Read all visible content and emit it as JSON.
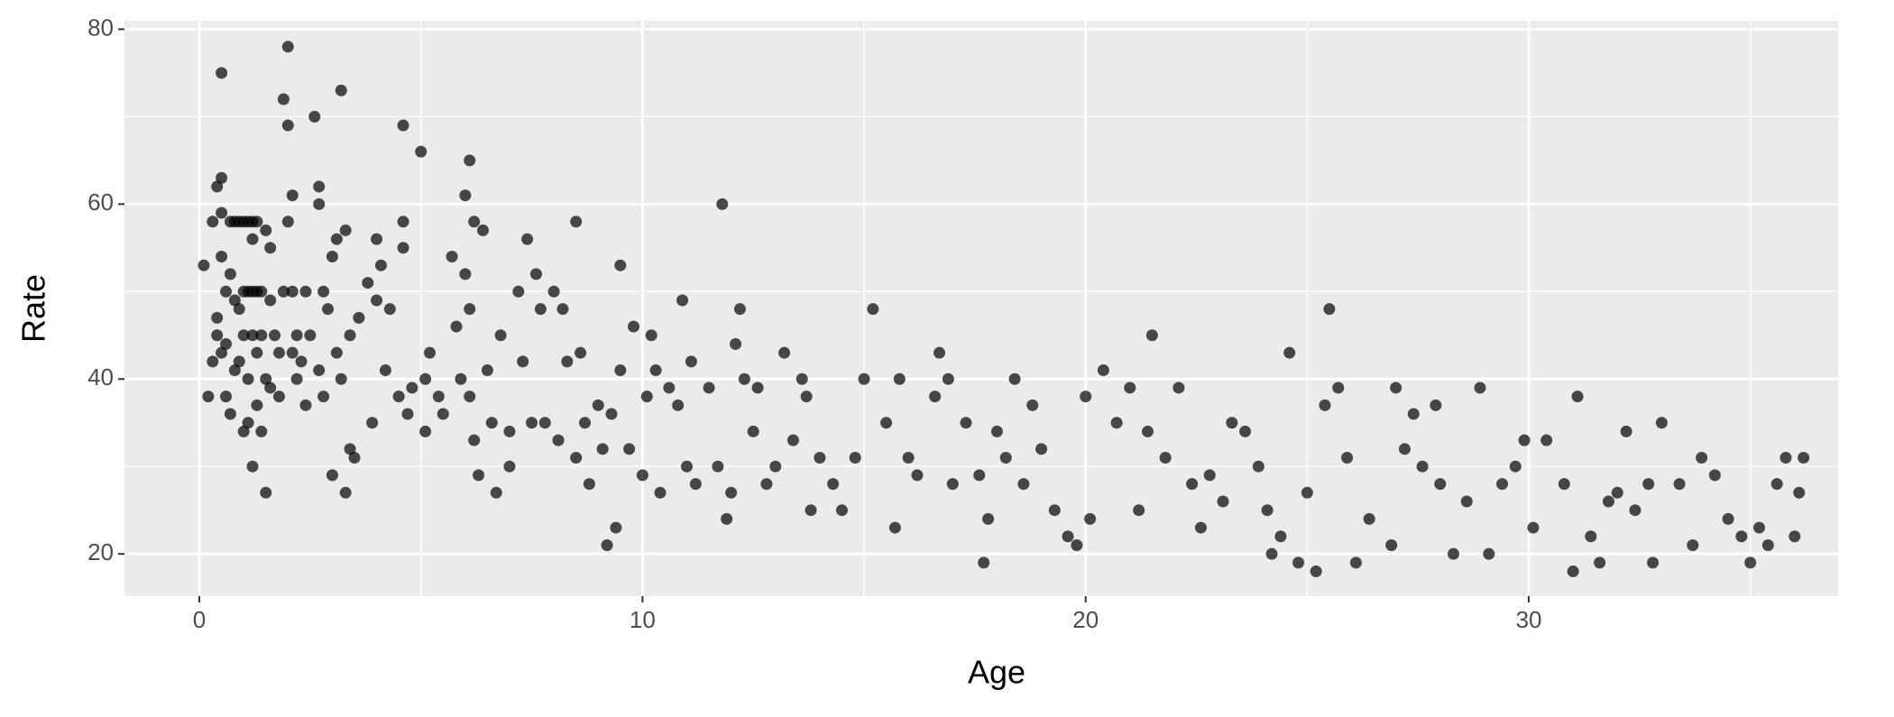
{
  "chart_data": {
    "type": "scatter",
    "x_label": "Age",
    "y_label": "Rate",
    "xlim": [
      -1.69,
      36.98
    ],
    "ylim": [
      15.17,
      80.97
    ],
    "xticks": [
      0,
      10,
      20,
      30
    ],
    "yticks": [
      20,
      40,
      60,
      80
    ],
    "xminor": [
      5,
      15,
      25,
      35
    ],
    "yminor": [
      30,
      50,
      70
    ],
    "grid": true,
    "color": "#000000",
    "opacity": 0.7,
    "x": [
      0.1,
      0.2,
      0.3,
      0.3,
      0.4,
      0.4,
      0.4,
      0.5,
      0.5,
      0.5,
      0.5,
      0.5,
      0.6,
      0.6,
      0.6,
      0.7,
      0.7,
      0.7,
      0.8,
      0.8,
      0.8,
      0.9,
      0.9,
      0.9,
      1.0,
      1.0,
      1.0,
      1.0,
      1.1,
      1.1,
      1.1,
      1.1,
      1.2,
      1.2,
      1.2,
      1.2,
      1.2,
      1.3,
      1.3,
      1.3,
      1.3,
      1.4,
      1.4,
      1.4,
      1.5,
      1.5,
      1.5,
      1.6,
      1.6,
      1.6,
      1.7,
      1.8,
      1.8,
      1.9,
      1.9,
      2.0,
      2.0,
      2.0,
      2.1,
      2.1,
      2.1,
      2.2,
      2.2,
      2.3,
      2.4,
      2.4,
      2.5,
      2.6,
      2.7,
      2.7,
      2.7,
      2.8,
      2.8,
      2.9,
      3.0,
      3.0,
      3.1,
      3.1,
      3.2,
      3.2,
      3.3,
      3.3,
      3.4,
      3.4,
      3.5,
      3.6,
      3.8,
      3.9,
      4.0,
      4.0,
      4.1,
      4.2,
      4.3,
      4.5,
      4.6,
      4.6,
      4.6,
      4.7,
      4.8,
      5.0,
      5.1,
      5.1,
      5.2,
      5.4,
      5.5,
      5.7,
      5.8,
      5.9,
      6.0,
      6.0,
      6.1,
      6.1,
      6.1,
      6.2,
      6.2,
      6.3,
      6.4,
      6.5,
      6.6,
      6.7,
      6.8,
      7.0,
      7.0,
      7.2,
      7.3,
      7.4,
      7.5,
      7.6,
      7.7,
      7.8,
      8.0,
      8.1,
      8.2,
      8.3,
      8.5,
      8.5,
      8.6,
      8.7,
      8.8,
      9.0,
      9.1,
      9.2,
      9.3,
      9.4,
      9.5,
      9.5,
      9.7,
      9.8,
      10.0,
      10.1,
      10.2,
      10.3,
      10.4,
      10.6,
      10.8,
      10.9,
      11.0,
      11.1,
      11.2,
      11.5,
      11.7,
      11.8,
      11.9,
      12.0,
      12.1,
      12.2,
      12.3,
      12.5,
      12.6,
      12.8,
      13.0,
      13.2,
      13.4,
      13.6,
      13.7,
      13.8,
      14.0,
      14.3,
      14.5,
      14.8,
      15.0,
      15.2,
      15.5,
      15.7,
      15.8,
      16.0,
      16.2,
      16.6,
      16.7,
      16.9,
      17.0,
      17.3,
      17.6,
      17.7,
      17.8,
      18.0,
      18.2,
      18.4,
      18.6,
      18.8,
      19.0,
      19.3,
      19.6,
      19.8,
      20.0,
      20.1,
      20.4,
      20.7,
      21.0,
      21.2,
      21.4,
      21.5,
      21.8,
      22.1,
      22.4,
      22.6,
      22.8,
      23.1,
      23.3,
      23.6,
      23.9,
      24.1,
      24.2,
      24.4,
      24.6,
      24.8,
      25.0,
      25.2,
      25.4,
      25.5,
      25.7,
      25.9,
      26.1,
      26.4,
      26.9,
      27.0,
      27.2,
      27.4,
      27.6,
      27.9,
      28.0,
      28.3,
      28.6,
      28.9,
      29.1,
      29.4,
      29.7,
      29.9,
      30.1,
      30.4,
      30.8,
      31.0,
      31.1,
      31.4,
      31.6,
      31.8,
      32.0,
      32.2,
      32.4,
      32.7,
      32.8,
      33.0,
      33.4,
      33.7,
      33.9,
      34.2,
      34.5,
      34.8,
      35.0,
      35.2,
      35.4,
      35.6,
      35.8,
      36.0,
      36.1,
      36.2
    ],
    "values": [
      53,
      38,
      58,
      42,
      62,
      47,
      45,
      63,
      75,
      59,
      54,
      43,
      38,
      50,
      44,
      36,
      58,
      52,
      58,
      49,
      41,
      58,
      48,
      42,
      58,
      50,
      45,
      34,
      58,
      50,
      40,
      35,
      58,
      56,
      50,
      45,
      30,
      58,
      50,
      43,
      37,
      50,
      45,
      34,
      57,
      40,
      27,
      55,
      49,
      39,
      45,
      43,
      38,
      72,
      50,
      78,
      69,
      58,
      61,
      50,
      43,
      45,
      40,
      42,
      37,
      50,
      45,
      70,
      62,
      60,
      41,
      38,
      50,
      48,
      54,
      29,
      56,
      43,
      73,
      40,
      57,
      27,
      45,
      32,
      31,
      47,
      51,
      35,
      56,
      49,
      53,
      41,
      48,
      38,
      69,
      58,
      55,
      36,
      39,
      66,
      40,
      34,
      43,
      38,
      36,
      54,
      46,
      40,
      61,
      52,
      65,
      48,
      38,
      58,
      33,
      29,
      57,
      41,
      35,
      27,
      45,
      34,
      30,
      50,
      42,
      56,
      35,
      52,
      48,
      35,
      50,
      33,
      48,
      42,
      58,
      31,
      43,
      35,
      28,
      37,
      32,
      21,
      36,
      23,
      53,
      41,
      32,
      46,
      29,
      38,
      45,
      41,
      27,
      39,
      37,
      49,
      30,
      42,
      28,
      39,
      30,
      60,
      24,
      27,
      44,
      48,
      40,
      34,
      39,
      28,
      30,
      43,
      33,
      40,
      38,
      25,
      31,
      28,
      25,
      31,
      40,
      48,
      35,
      23,
      40,
      31,
      29,
      38,
      43,
      40,
      28,
      35,
      29,
      19,
      24,
      34,
      31,
      40,
      28,
      37,
      32,
      25,
      22,
      21,
      38,
      24,
      41,
      35,
      39,
      25,
      34,
      45,
      31,
      39,
      28,
      23,
      29,
      26,
      35,
      34,
      30,
      25,
      20,
      22,
      43,
      19,
      27,
      18,
      37,
      48,
      39,
      31,
      19,
      24,
      21,
      39,
      32,
      36,
      30,
      37,
      28,
      20,
      26,
      39,
      20,
      28,
      30,
      33,
      23,
      33,
      28,
      18,
      38,
      22,
      19,
      26,
      27,
      34,
      25,
      28,
      19,
      35,
      28,
      21,
      31,
      29,
      24,
      22,
      19,
      23,
      21,
      28,
      31,
      22,
      27,
      31
    ]
  }
}
